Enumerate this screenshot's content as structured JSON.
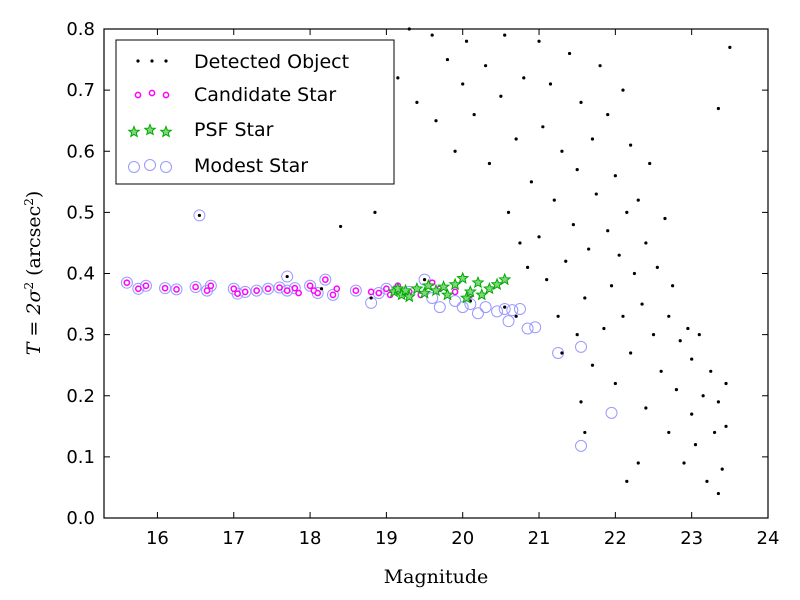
{
  "chart_data": {
    "type": "scatter",
    "xlabel": "Magnitude",
    "ylabel": "T = 2σ² (arcsec²)",
    "ylabel_parts": {
      "main": "T = 2σ",
      "sup": "2",
      "open": " (arcsec",
      "sup2": "2",
      "close": ")"
    },
    "xlim": [
      15.3,
      24
    ],
    "ylim": [
      0,
      0.8
    ],
    "xticks": [
      "16",
      "17",
      "18",
      "19",
      "20",
      "21",
      "22",
      "23",
      "24"
    ],
    "yticks": [
      "0.0",
      "0.1",
      "0.2",
      "0.3",
      "0.4",
      "0.5",
      "0.6",
      "0.7",
      "0.8"
    ],
    "legend_position": "top-left",
    "grid": false,
    "colors": {
      "detected": "#000000",
      "candidate": "#ff00ff",
      "psf": "#00aa00",
      "modest": "#9999ff"
    },
    "series": [
      {
        "name": "Detected Object",
        "marker": "dot",
        "points": [
          [
            16.55,
            0.495
          ],
          [
            17.7,
            0.395
          ],
          [
            18.15,
            0.375
          ],
          [
            18.8,
            0.36
          ],
          [
            18.85,
            0.5
          ],
          [
            18.4,
            0.477
          ],
          [
            19.5,
            0.39
          ],
          [
            19.3,
            0.37
          ],
          [
            19.9,
            0.38
          ],
          [
            20.1,
            0.355
          ],
          [
            20.55,
            0.345
          ],
          [
            20.7,
            0.33
          ],
          [
            19.0,
            0.55
          ],
          [
            19.15,
            0.72
          ],
          [
            19.3,
            0.8
          ],
          [
            19.4,
            0.68
          ],
          [
            19.6,
            0.79
          ],
          [
            19.65,
            0.65
          ],
          [
            19.8,
            0.75
          ],
          [
            19.9,
            0.6
          ],
          [
            20.0,
            0.71
          ],
          [
            20.05,
            0.78
          ],
          [
            20.15,
            0.66
          ],
          [
            20.3,
            0.74
          ],
          [
            20.35,
            0.58
          ],
          [
            20.5,
            0.69
          ],
          [
            20.55,
            0.79
          ],
          [
            20.6,
            0.5
          ],
          [
            20.7,
            0.62
          ],
          [
            20.75,
            0.45
          ],
          [
            20.8,
            0.72
          ],
          [
            20.85,
            0.41
          ],
          [
            20.9,
            0.55
          ],
          [
            21.0,
            0.78
          ],
          [
            21.0,
            0.46
          ],
          [
            21.05,
            0.64
          ],
          [
            21.1,
            0.39
          ],
          [
            21.15,
            0.71
          ],
          [
            21.2,
            0.52
          ],
          [
            21.25,
            0.33
          ],
          [
            21.3,
            0.6
          ],
          [
            21.35,
            0.42
          ],
          [
            21.4,
            0.76
          ],
          [
            21.45,
            0.48
          ],
          [
            21.5,
            0.3
          ],
          [
            21.5,
            0.57
          ],
          [
            21.55,
            0.68
          ],
          [
            21.6,
            0.36
          ],
          [
            21.65,
            0.44
          ],
          [
            21.7,
            0.62
          ],
          [
            21.7,
            0.25
          ],
          [
            21.75,
            0.53
          ],
          [
            21.8,
            0.74
          ],
          [
            21.85,
            0.31
          ],
          [
            21.9,
            0.47
          ],
          [
            21.9,
            0.66
          ],
          [
            21.95,
            0.38
          ],
          [
            22.0,
            0.56
          ],
          [
            22.0,
            0.22
          ],
          [
            22.05,
            0.43
          ],
          [
            22.1,
            0.7
          ],
          [
            22.1,
            0.33
          ],
          [
            22.15,
            0.5
          ],
          [
            22.2,
            0.27
          ],
          [
            22.2,
            0.61
          ],
          [
            22.25,
            0.4
          ],
          [
            22.3,
            0.09
          ],
          [
            22.3,
            0.52
          ],
          [
            22.35,
            0.35
          ],
          [
            22.4,
            0.45
          ],
          [
            22.4,
            0.18
          ],
          [
            22.45,
            0.58
          ],
          [
            22.5,
            0.3
          ],
          [
            22.55,
            0.41
          ],
          [
            22.6,
            0.24
          ],
          [
            22.65,
            0.49
          ],
          [
            22.7,
            0.14
          ],
          [
            22.7,
            0.33
          ],
          [
            22.75,
            0.38
          ],
          [
            22.8,
            0.21
          ],
          [
            22.85,
            0.29
          ],
          [
            22.9,
            0.09
          ],
          [
            22.95,
            0.31
          ],
          [
            23.0,
            0.17
          ],
          [
            23.0,
            0.26
          ],
          [
            23.05,
            0.12
          ],
          [
            23.1,
            0.3
          ],
          [
            23.15,
            0.2
          ],
          [
            23.2,
            0.06
          ],
          [
            23.25,
            0.24
          ],
          [
            23.3,
            0.14
          ],
          [
            23.35,
            0.19
          ],
          [
            23.4,
            0.08
          ],
          [
            23.45,
            0.15
          ],
          [
            23.35,
            0.04
          ],
          [
            23.45,
            0.22
          ],
          [
            23.5,
            0.77
          ],
          [
            23.35,
            0.67
          ],
          [
            21.55,
            0.19
          ],
          [
            21.3,
            0.27
          ],
          [
            21.6,
            0.14
          ],
          [
            22.15,
            0.06
          ]
        ]
      },
      {
        "name": "Candidate Star",
        "marker": "circle",
        "points": [
          [
            15.6,
            0.385
          ],
          [
            15.75,
            0.375
          ],
          [
            15.85,
            0.38
          ],
          [
            16.1,
            0.376
          ],
          [
            16.25,
            0.374
          ],
          [
            16.5,
            0.378
          ],
          [
            16.65,
            0.372
          ],
          [
            16.7,
            0.38
          ],
          [
            17.0,
            0.375
          ],
          [
            17.05,
            0.367
          ],
          [
            17.15,
            0.37
          ],
          [
            17.3,
            0.372
          ],
          [
            17.45,
            0.375
          ],
          [
            17.6,
            0.377
          ],
          [
            17.7,
            0.372
          ],
          [
            17.8,
            0.376
          ],
          [
            17.85,
            0.368
          ],
          [
            18.0,
            0.38
          ],
          [
            18.05,
            0.372
          ],
          [
            18.1,
            0.368
          ],
          [
            18.2,
            0.39
          ],
          [
            18.3,
            0.365
          ],
          [
            18.35,
            0.375
          ],
          [
            18.6,
            0.372
          ],
          [
            18.8,
            0.37
          ],
          [
            18.9,
            0.368
          ],
          [
            19.0,
            0.375
          ],
          [
            19.05,
            0.365
          ],
          [
            19.15,
            0.38
          ],
          [
            19.3,
            0.37
          ],
          [
            19.45,
            0.365
          ],
          [
            19.6,
            0.385
          ],
          [
            19.7,
            0.375
          ],
          [
            19.9,
            0.37
          ],
          [
            20.1,
            0.365
          ]
        ]
      },
      {
        "name": "PSF Star",
        "marker": "star",
        "points": [
          [
            19.1,
            0.37
          ],
          [
            19.15,
            0.375
          ],
          [
            19.2,
            0.365
          ],
          [
            19.25,
            0.372
          ],
          [
            19.3,
            0.362
          ],
          [
            19.4,
            0.375
          ],
          [
            19.5,
            0.368
          ],
          [
            19.55,
            0.38
          ],
          [
            19.65,
            0.372
          ],
          [
            19.75,
            0.378
          ],
          [
            19.8,
            0.365
          ],
          [
            19.9,
            0.382
          ],
          [
            20.0,
            0.392
          ],
          [
            20.05,
            0.36
          ],
          [
            20.1,
            0.37
          ],
          [
            20.2,
            0.385
          ],
          [
            20.25,
            0.365
          ],
          [
            20.35,
            0.375
          ],
          [
            20.45,
            0.382
          ],
          [
            20.55,
            0.39
          ]
        ]
      },
      {
        "name": "Modest Star",
        "marker": "open-circle",
        "points": [
          [
            15.6,
            0.385
          ],
          [
            15.75,
            0.375
          ],
          [
            15.85,
            0.38
          ],
          [
            16.1,
            0.376
          ],
          [
            16.25,
            0.374
          ],
          [
            16.5,
            0.378
          ],
          [
            16.55,
            0.495
          ],
          [
            16.65,
            0.372
          ],
          [
            16.7,
            0.38
          ],
          [
            17.0,
            0.375
          ],
          [
            17.05,
            0.367
          ],
          [
            17.15,
            0.37
          ],
          [
            17.3,
            0.372
          ],
          [
            17.45,
            0.375
          ],
          [
            17.6,
            0.377
          ],
          [
            17.7,
            0.372
          ],
          [
            17.7,
            0.395
          ],
          [
            17.8,
            0.376
          ],
          [
            18.0,
            0.38
          ],
          [
            18.1,
            0.368
          ],
          [
            18.2,
            0.39
          ],
          [
            18.3,
            0.365
          ],
          [
            18.6,
            0.372
          ],
          [
            18.8,
            0.352
          ],
          [
            18.9,
            0.368
          ],
          [
            19.0,
            0.375
          ],
          [
            19.3,
            0.37
          ],
          [
            19.5,
            0.39
          ],
          [
            19.6,
            0.36
          ],
          [
            19.7,
            0.345
          ],
          [
            19.9,
            0.355
          ],
          [
            20.0,
            0.345
          ],
          [
            20.1,
            0.35
          ],
          [
            20.2,
            0.335
          ],
          [
            20.3,
            0.345
          ],
          [
            20.45,
            0.338
          ],
          [
            20.55,
            0.342
          ],
          [
            20.6,
            0.322
          ],
          [
            20.65,
            0.34
          ],
          [
            20.75,
            0.342
          ],
          [
            20.85,
            0.31
          ],
          [
            20.95,
            0.312
          ],
          [
            21.25,
            0.27
          ],
          [
            21.55,
            0.28
          ],
          [
            21.95,
            0.172
          ],
          [
            21.55,
            0.118
          ]
        ]
      }
    ]
  }
}
